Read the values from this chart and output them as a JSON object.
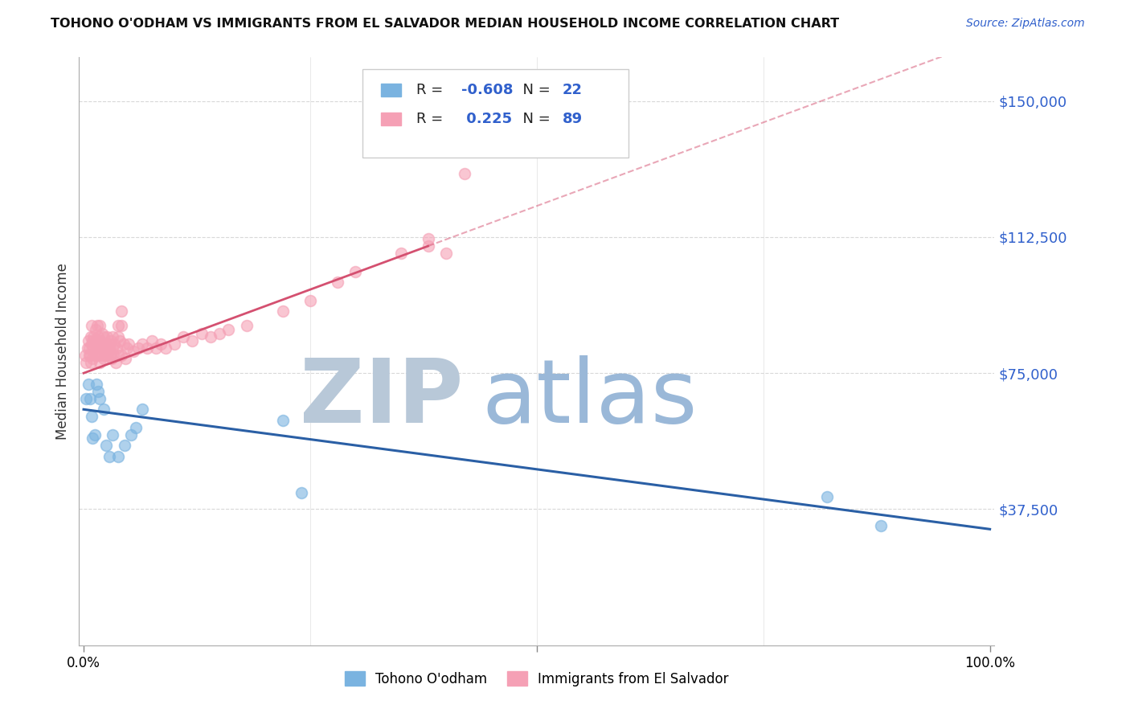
{
  "title": "TOHONO O'ODHAM VS IMMIGRANTS FROM EL SALVADOR MEDIAN HOUSEHOLD INCOME CORRELATION CHART",
  "source": "Source: ZipAtlas.com",
  "ylabel": "Median Household Income",
  "ylim": [
    0,
    162000
  ],
  "xlim": [
    -0.005,
    1.005
  ],
  "watermark_zip": "ZIP",
  "watermark_atlas": "atlas",
  "legend_r1_label": "R = ",
  "legend_r1_val": "-0.608",
  "legend_n1_label": "N = ",
  "legend_n1_val": "22",
  "legend_r2_label": "R = ",
  "legend_r2_val": " 0.225",
  "legend_n2_label": "N = ",
  "legend_n2_val": "89",
  "blue_color": "#7ab3e0",
  "pink_color": "#f5a0b5",
  "trendline_blue": "#2a5fa5",
  "trendline_pink": "#d45070",
  "watermark_zip_color": "#b8c8d8",
  "watermark_atlas_color": "#9ab8d8",
  "ytick_color": "#3060cc",
  "grid_color": "#d8d8d8",
  "blue_scatter_x": [
    0.003,
    0.005,
    0.007,
    0.009,
    0.01,
    0.012,
    0.014,
    0.016,
    0.018,
    0.022,
    0.025,
    0.028,
    0.032,
    0.038,
    0.045,
    0.052,
    0.058,
    0.065,
    0.22,
    0.24,
    0.82,
    0.88
  ],
  "blue_scatter_y": [
    68000,
    72000,
    68000,
    63000,
    57000,
    58000,
    72000,
    70000,
    68000,
    65000,
    55000,
    52000,
    58000,
    52000,
    55000,
    58000,
    60000,
    65000,
    62000,
    42000,
    41000,
    33000
  ],
  "pink_scatter_x": [
    0.002,
    0.003,
    0.004,
    0.005,
    0.006,
    0.007,
    0.008,
    0.009,
    0.009,
    0.01,
    0.01,
    0.011,
    0.012,
    0.013,
    0.013,
    0.014,
    0.015,
    0.015,
    0.016,
    0.016,
    0.017,
    0.018,
    0.018,
    0.019,
    0.02,
    0.02,
    0.021,
    0.022,
    0.022,
    0.023,
    0.024,
    0.025,
    0.026,
    0.027,
    0.028,
    0.029,
    0.03,
    0.031,
    0.032,
    0.033,
    0.034,
    0.035,
    0.036,
    0.038,
    0.04,
    0.042,
    0.044,
    0.046,
    0.048,
    0.05,
    0.055,
    0.06,
    0.065,
    0.07,
    0.075,
    0.08,
    0.085,
    0.09,
    0.1,
    0.11,
    0.12,
    0.13,
    0.14,
    0.15,
    0.16,
    0.18,
    0.22,
    0.25,
    0.28,
    0.3,
    0.35,
    0.38,
    0.38,
    0.4,
    0.042,
    0.038,
    0.032,
    0.028,
    0.025,
    0.022,
    0.018,
    0.015,
    0.013,
    0.01,
    0.008,
    0.006,
    0.042,
    0.038,
    0.42
  ],
  "pink_scatter_y": [
    80000,
    78000,
    82000,
    84000,
    82000,
    80000,
    85000,
    83000,
    88000,
    82000,
    79000,
    85000,
    83000,
    80000,
    87000,
    84000,
    82000,
    88000,
    85000,
    80000,
    83000,
    88000,
    82000,
    84000,
    80000,
    86000,
    82000,
    85000,
    79000,
    83000,
    81000,
    80000,
    85000,
    82000,
    83000,
    80000,
    84000,
    79000,
    82000,
    80000,
    83000,
    78000,
    82000,
    80000,
    84000,
    80000,
    83000,
    79000,
    82000,
    83000,
    81000,
    82000,
    83000,
    82000,
    84000,
    82000,
    83000,
    82000,
    83000,
    85000,
    84000,
    86000,
    85000,
    86000,
    87000,
    88000,
    92000,
    95000,
    100000,
    103000,
    108000,
    110000,
    112000,
    108000,
    92000,
    88000,
    85000,
    82000,
    80000,
    83000,
    78000,
    82000,
    80000,
    84000,
    78000,
    80000,
    88000,
    85000,
    130000
  ]
}
